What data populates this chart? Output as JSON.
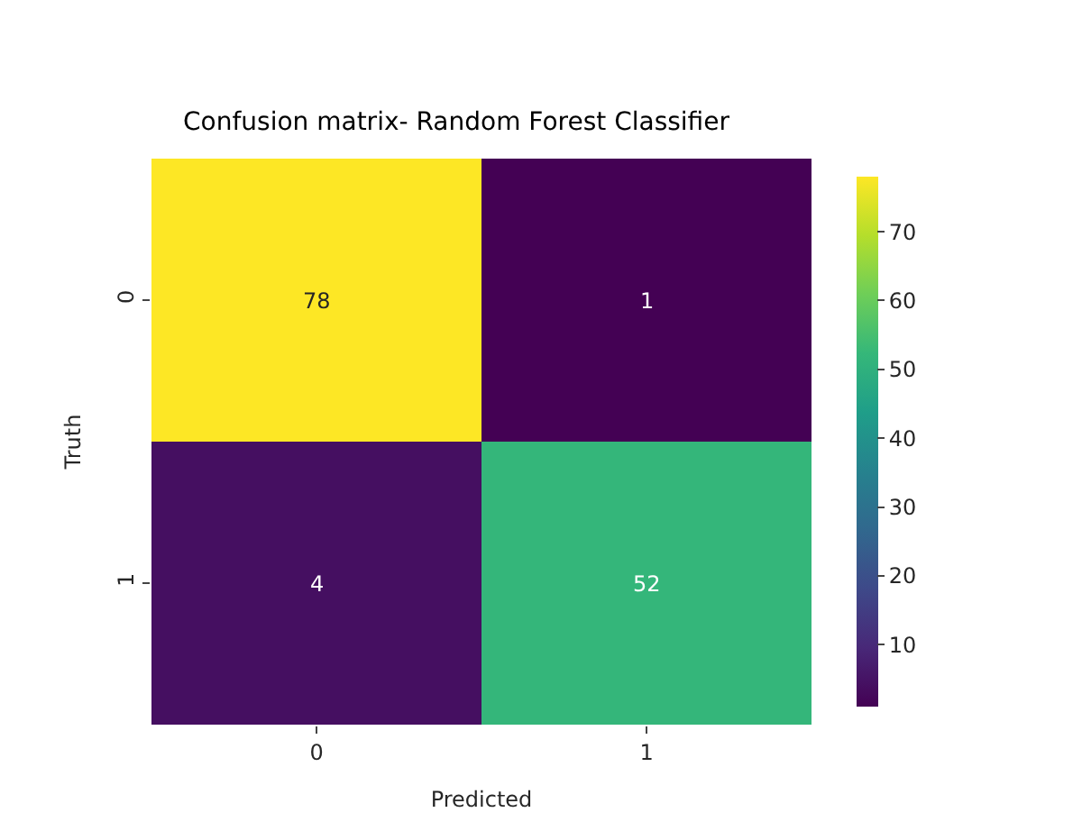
{
  "chart_data": {
    "type": "heatmap",
    "title": "Confusion matrix- Random Forest Classifier",
    "xlabel": "Predicted",
    "ylabel": "Truth",
    "categories": [
      "0",
      "1"
    ],
    "y_categories": [
      "0",
      "1"
    ],
    "cells": [
      [
        78,
        1
      ],
      [
        4,
        52
      ]
    ],
    "data_labels": true,
    "clim": [
      1,
      78
    ],
    "cticks": [
      10,
      20,
      30,
      40,
      50,
      60,
      70
    ]
  }
}
